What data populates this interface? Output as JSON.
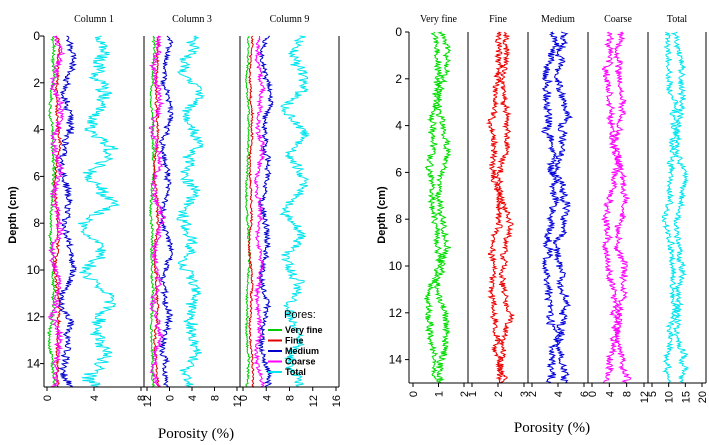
{
  "chart_data": [
    {
      "type": "line",
      "panels": [
        {
          "title": "Column 1",
          "xticks": [
            "0",
            "4",
            "8"
          ],
          "xlim": [
            0,
            12
          ]
        },
        {
          "title": "Column 3",
          "xticks": [
            "12",
            "0",
            "4",
            "8",
            "12"
          ],
          "xlim": [
            0,
            14
          ]
        },
        {
          "title": "Column 9",
          "xticks": [
            "0",
            "4",
            "8",
            "12",
            "16"
          ],
          "xlim": [
            0,
            16
          ]
        }
      ],
      "ylabel": "Depth (cm)",
      "xlabel": "Porosity (%)",
      "ylim": [
        0,
        15
      ],
      "yticks": [
        "0",
        "2",
        "4",
        "6",
        "8",
        "10",
        "12",
        "14"
      ],
      "legend": {
        "title": "Pores:",
        "placement": "bottom-right",
        "entries": [
          {
            "name": "Very fine",
            "color": "#00cc00"
          },
          {
            "name": "Fine",
            "color": "#e00000"
          },
          {
            "name": "Medium",
            "color": "#0000cc"
          },
          {
            "name": "Coarse",
            "color": "#ff00ff"
          },
          {
            "name": "Total",
            "color": "#00e5ee"
          }
        ]
      },
      "series_levels": {
        "Column 1": {
          "Very fine": 1,
          "Fine": 1.6,
          "Medium": 2.8,
          "Coarse": 1.5,
          "Total": 6.5
        },
        "Column 3": {
          "Very fine": 1.2,
          "Fine": 1.8,
          "Medium": 3.2,
          "Coarse": 1.8,
          "Total": 6.8
        },
        "Column 9": {
          "Very fine": 1.2,
          "Fine": 1.8,
          "Medium": 4,
          "Coarse": 3,
          "Total": 9
        }
      }
    },
    {
      "type": "line",
      "panels": [
        {
          "title": "Very fine",
          "xticks": [
            "0",
            "1",
            "2"
          ],
          "xlim": [
            0,
            2
          ],
          "color": "#00dd00",
          "center": 1,
          "amplitude": 0.35
        },
        {
          "title": "Fine",
          "xticks": [
            "1",
            "2",
            "3"
          ],
          "xlim": [
            0.5,
            3.5
          ],
          "color": "#ee0000",
          "center": 2.1,
          "amplitude": 0.5
        },
        {
          "title": "Medium",
          "xticks": [
            "2",
            "4",
            "6"
          ],
          "xlim": [
            1,
            7
          ],
          "color": "#0000dd",
          "center": 3.8,
          "amplitude": 1.2
        },
        {
          "title": "Coarse",
          "xticks": [
            "0",
            "4",
            "8",
            "12"
          ],
          "xlim": [
            -1,
            13
          ],
          "color": "#ff00ff",
          "center": 5.5,
          "amplitude": 2.5
        },
        {
          "title": "Total",
          "xticks": [
            "5",
            "10",
            "15",
            "20"
          ],
          "xlim": [
            2,
            20
          ],
          "color": "#00e5ee",
          "center": 10.5,
          "amplitude": 3
        }
      ],
      "ylabel": "Depth (cm)",
      "xlabel": "Porosity (%)",
      "ylim": [
        0,
        15
      ],
      "yticks": [
        "0",
        "2",
        "4",
        "6",
        "8",
        "10",
        "12",
        "14"
      ]
    }
  ]
}
